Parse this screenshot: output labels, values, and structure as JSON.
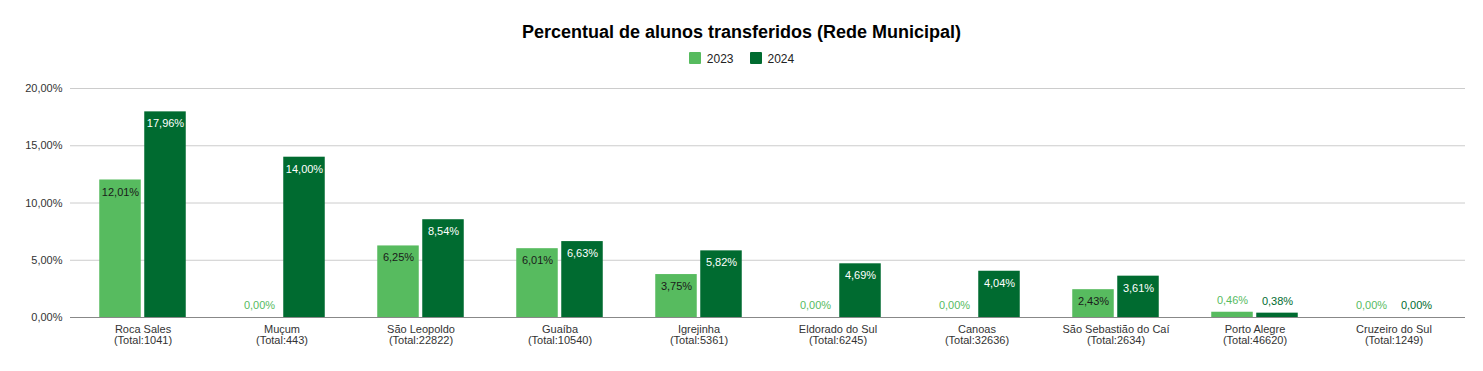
{
  "chart_data": {
    "type": "bar",
    "title": "Percentual de alunos transferidos (Rede Municipal)",
    "categories": [
      "Roca Sales\n(Total:1041)",
      "Muçum\n(Total:443)",
      "São Leopoldo\n(Total:22822)",
      "Guaíba\n(Total:10540)",
      "Igrejinha\n(Total:5361)",
      "Eldorado do Sul\n(Total:6245)",
      "Canoas\n(Total:32636)",
      "São Sebastião do Caí\n(Total:2634)",
      "Porto Alegre\n(Total:46620)",
      "Cruzeiro do Sul\n(Total:1249)"
    ],
    "series": [
      {
        "name": "2023",
        "color": "#57bb5f",
        "values": [
          12.01,
          0,
          6.25,
          6.01,
          3.75,
          0,
          0,
          2.43,
          0.46,
          0
        ],
        "value_labels": [
          "12,01%",
          "0,00%",
          "6,25%",
          "6,01%",
          "3,75%",
          "0,00%",
          "0,00%",
          "2,43%",
          "0,46%",
          "0,00%"
        ]
      },
      {
        "name": "2024",
        "color": "#006b30",
        "values": [
          17.96,
          14.0,
          8.54,
          6.63,
          5.82,
          4.69,
          4.04,
          3.61,
          0.38,
          0
        ],
        "value_labels": [
          "17,96%",
          "14,00%",
          "8,54%",
          "6,63%",
          "5,82%",
          "4,69%",
          "4,04%",
          "3,61%",
          "0,38%",
          "0,00%"
        ]
      }
    ],
    "ylim": [
      0,
      20
    ],
    "yticks": [
      {
        "value": 0,
        "label": "0,00%"
      },
      {
        "value": 5,
        "label": "5,00%"
      },
      {
        "value": 10,
        "label": "10,00%"
      },
      {
        "value": 15,
        "label": "15,00%"
      },
      {
        "value": 20,
        "label": "20,00%"
      }
    ],
    "grid": true,
    "data_labels": true,
    "legend": "top"
  }
}
